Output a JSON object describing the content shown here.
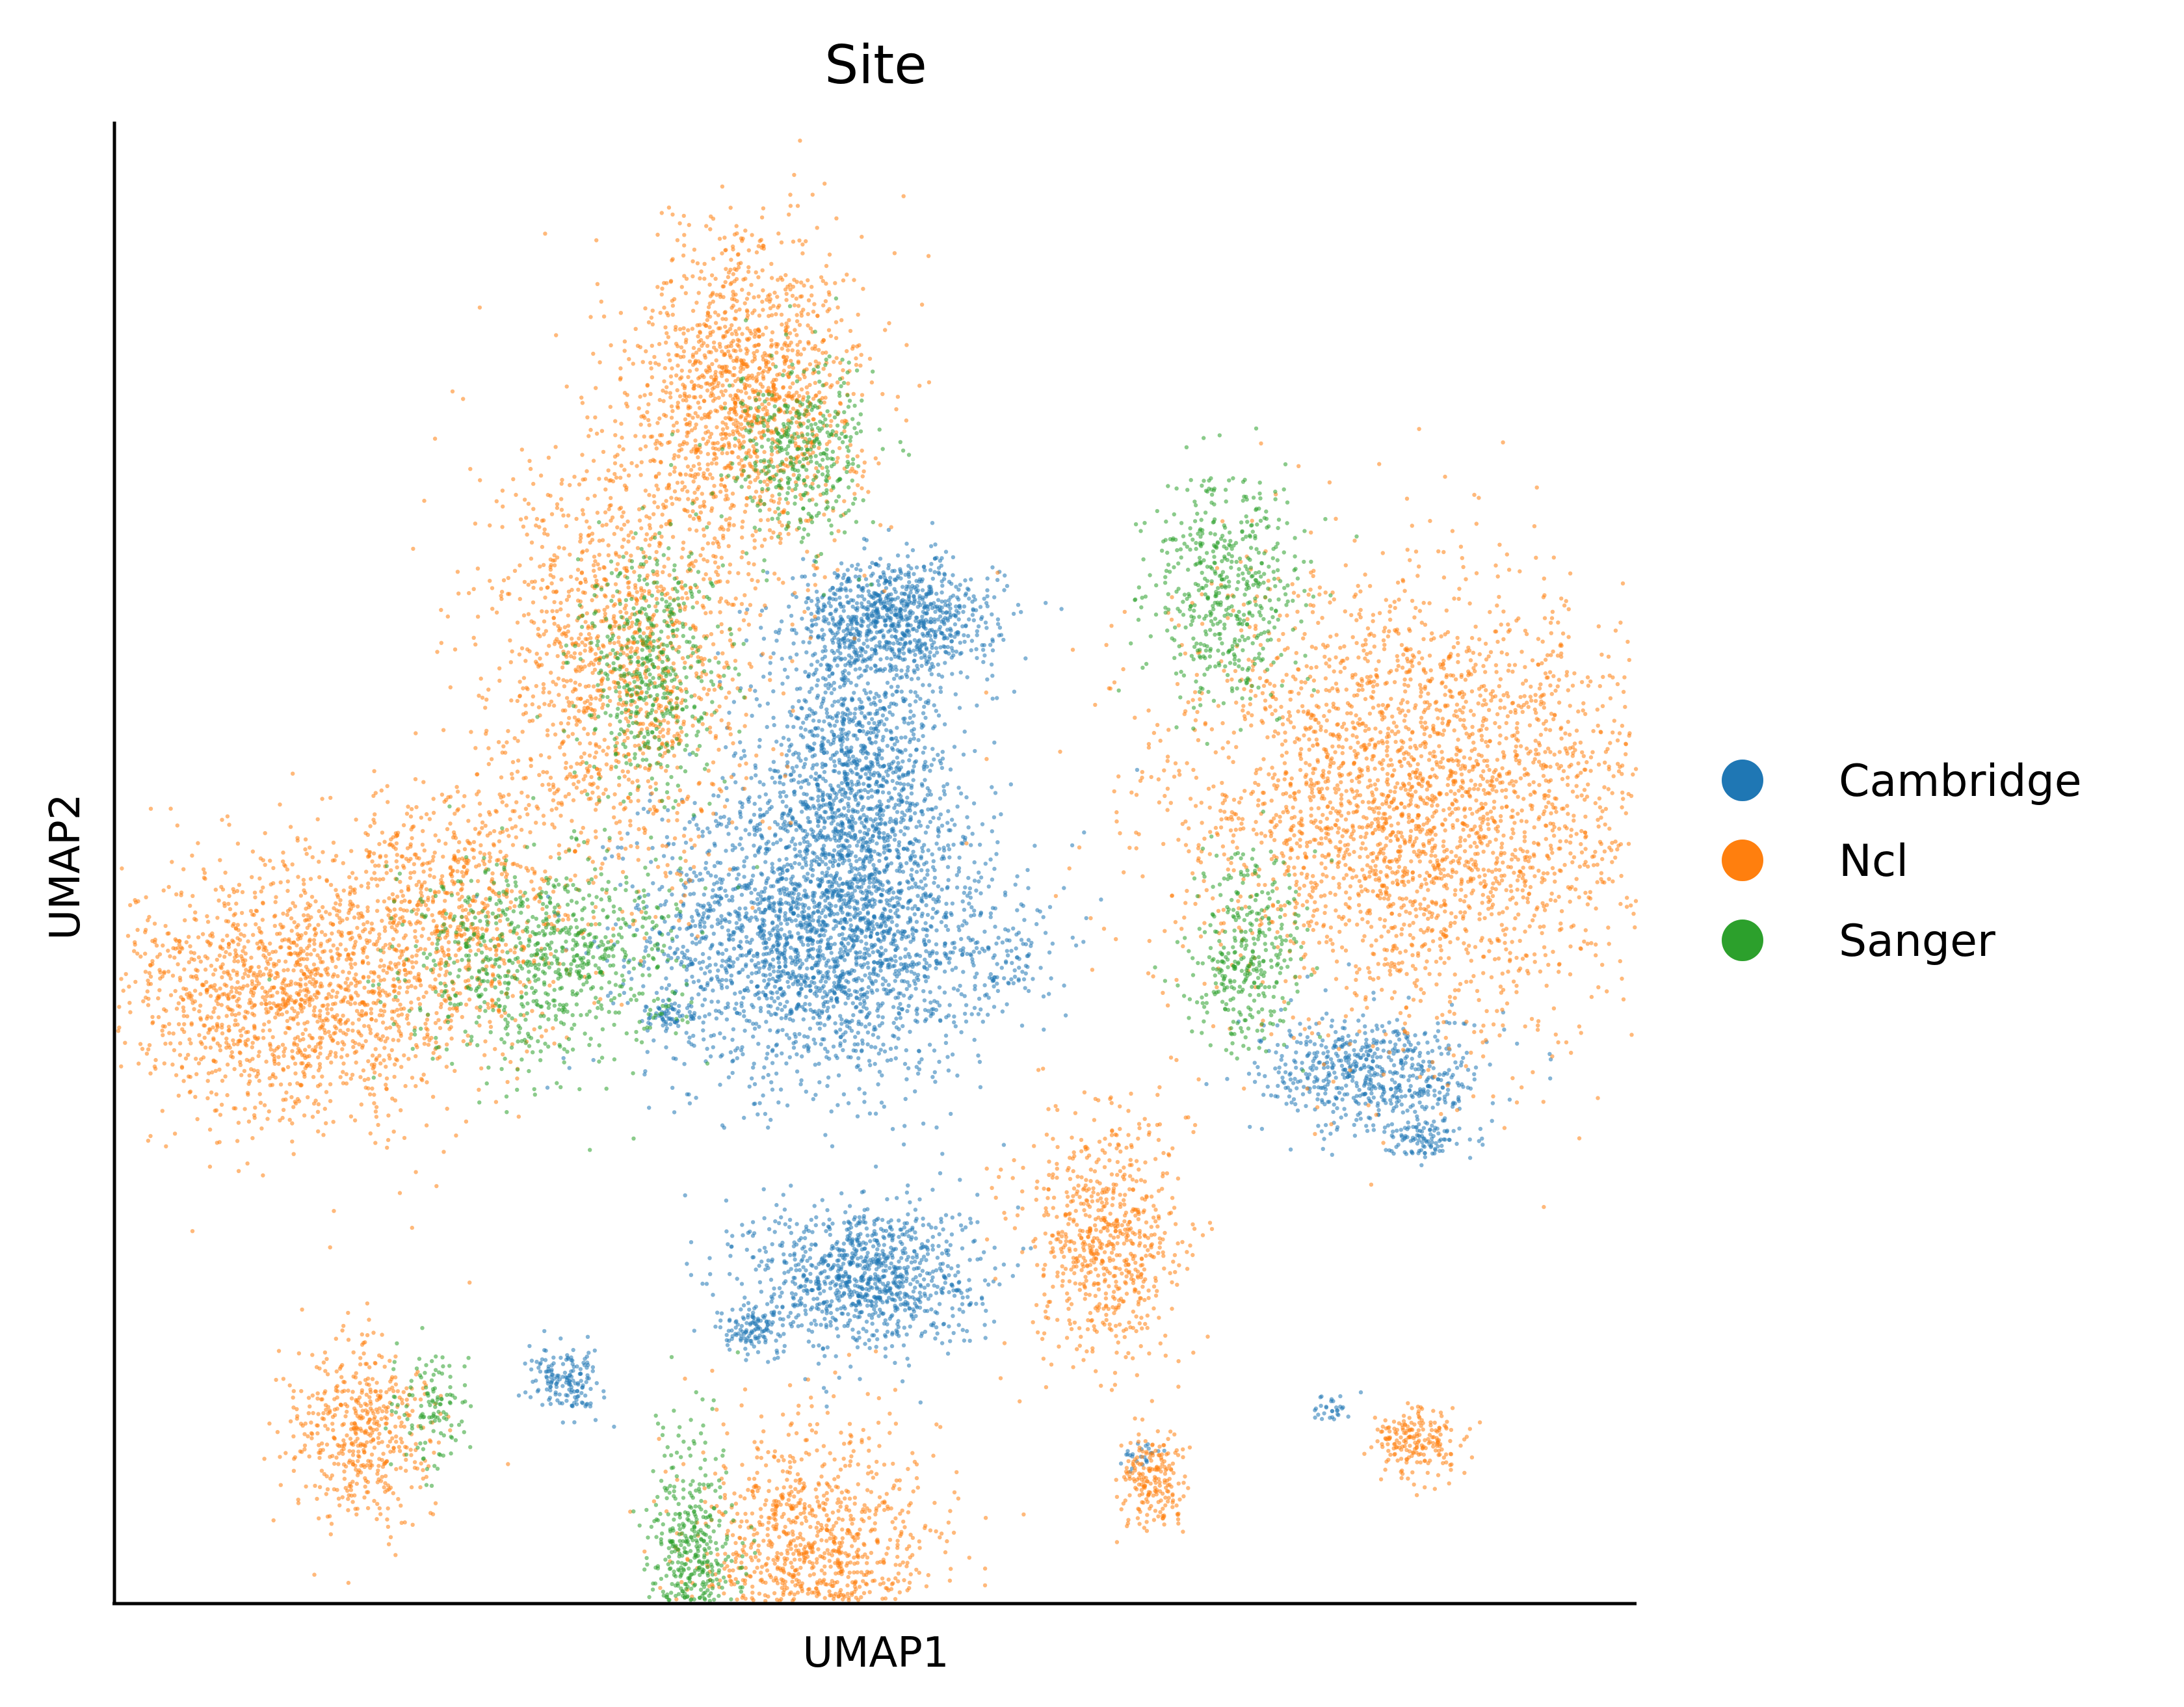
{
  "chart_data": {
    "type": "scatter",
    "title": "Site",
    "xlabel": "UMAP1",
    "ylabel": "UMAP2",
    "xlim": [
      -10,
      20
    ],
    "ylim": [
      -10,
      18
    ],
    "grid": false,
    "x_ticks_visible": false,
    "y_ticks_visible": false,
    "legend": {
      "placement": "right",
      "entries": [
        {
          "label": "Cambridge",
          "color": "#1f77b4"
        },
        {
          "label": "Ncl",
          "color": "#ff7f0e"
        },
        {
          "label": "Sanger",
          "color": "#2ca02c"
        }
      ]
    },
    "series": [
      {
        "name": "Cambridge",
        "color": "#1f77b4",
        "clusters": [
          {
            "center": [
              4.0,
              2.7
            ],
            "spread": [
              1.7,
              1.4
            ],
            "count": 2600
          },
          {
            "center": [
              4.6,
              5.8
            ],
            "spread": [
              0.9,
              1.3
            ],
            "count": 1100
          },
          {
            "center": [
              5.4,
              8.6
            ],
            "spread": [
              1.0,
              0.55
            ],
            "count": 900
          },
          {
            "center": [
              4.8,
              -3.8
            ],
            "spread": [
              1.1,
              0.7
            ],
            "count": 1000
          },
          {
            "center": [
              2.6,
              -4.8
            ],
            "spread": [
              0.4,
              0.25
            ],
            "count": 120
          },
          {
            "center": [
              14.8,
              0.0
            ],
            "spread": [
              1.1,
              0.55
            ],
            "count": 600
          },
          {
            "center": [
              15.8,
              -1.2
            ],
            "spread": [
              0.35,
              0.18
            ],
            "count": 100
          },
          {
            "center": [
              -1.1,
              -5.8
            ],
            "spread": [
              0.35,
              0.3
            ],
            "count": 160
          },
          {
            "center": [
              7.5,
              2.0
            ],
            "spread": [
              0.5,
              0.35
            ],
            "count": 70
          },
          {
            "center": [
              1.0,
              1.1
            ],
            "spread": [
              0.3,
              0.15
            ],
            "count": 60
          },
          {
            "center": [
              14.0,
              -6.3
            ],
            "spread": [
              0.2,
              0.15
            ],
            "count": 30
          },
          {
            "center": [
              10.2,
              -7.2
            ],
            "spread": [
              0.2,
              0.1
            ],
            "count": 25
          }
        ]
      },
      {
        "name": "Ncl",
        "color": "#ff7f0e",
        "clusters": [
          {
            "center": [
              2.5,
              12.9
            ],
            "spread": [
              1.1,
              1.5
            ],
            "count": 1400
          },
          {
            "center": [
              0.0,
              7.8
            ],
            "spread": [
              1.3,
              2.1
            ],
            "count": 1400
          },
          {
            "center": [
              -6.5,
              1.5
            ],
            "spread": [
              1.8,
              1.2
            ],
            "count": 1600
          },
          {
            "center": [
              -3.4,
              3.2
            ],
            "spread": [
              1.2,
              1.2
            ],
            "count": 700
          },
          {
            "center": [
              15.7,
              5.1
            ],
            "spread": [
              2.4,
              2.1
            ],
            "count": 3000
          },
          {
            "center": [
              3.8,
              -9.5
            ],
            "spread": [
              1.2,
              1.4
            ],
            "count": 1400
          },
          {
            "center": [
              -5.2,
              -6.8
            ],
            "spread": [
              0.7,
              0.9
            ],
            "count": 500
          },
          {
            "center": [
              9.5,
              -3.1
            ],
            "spread": [
              0.75,
              1.2
            ],
            "count": 700
          },
          {
            "center": [
              10.5,
              -7.7
            ],
            "spread": [
              0.35,
              0.45
            ],
            "count": 200
          },
          {
            "center": [
              15.7,
              -7.0
            ],
            "spread": [
              0.45,
              0.35
            ],
            "count": 200
          }
        ]
      },
      {
        "name": "Sanger",
        "color": "#2ca02c",
        "clusters": [
          {
            "center": [
              -1.6,
              2.1
            ],
            "spread": [
              1.3,
              1.0
            ],
            "count": 800
          },
          {
            "center": [
              0.6,
              7.6
            ],
            "spread": [
              0.7,
              1.2
            ],
            "count": 500
          },
          {
            "center": [
              3.5,
              11.8
            ],
            "spread": [
              0.7,
              0.9
            ],
            "count": 400
          },
          {
            "center": [
              11.9,
              9.2
            ],
            "spread": [
              0.7,
              1.1
            ],
            "count": 500
          },
          {
            "center": [
              12.3,
              2.3
            ],
            "spread": [
              0.6,
              0.9
            ],
            "count": 350
          },
          {
            "center": [
              1.4,
              -9.3
            ],
            "spread": [
              0.45,
              1.2
            ],
            "count": 500
          },
          {
            "center": [
              -3.8,
              -6.3
            ],
            "spread": [
              0.35,
              0.5
            ],
            "count": 120
          }
        ]
      }
    ]
  }
}
